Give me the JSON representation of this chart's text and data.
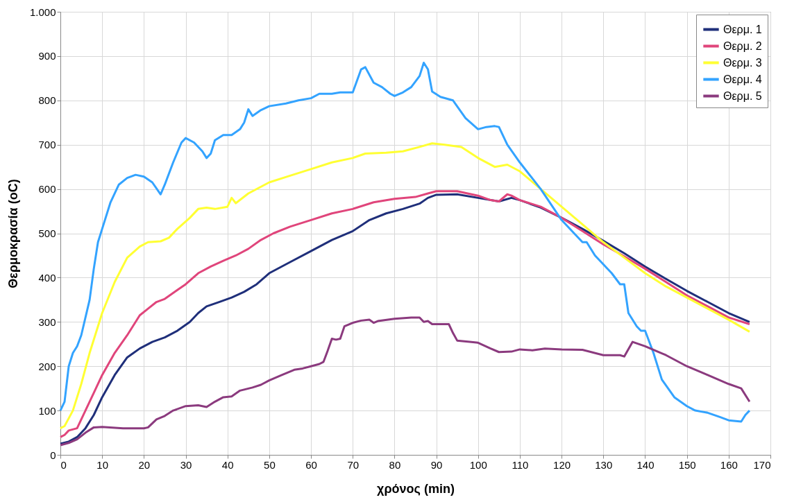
{
  "chart_data": {
    "type": "line",
    "xlabel": "χρόνος (min)",
    "ylabel": "Θερμοκρασία (oC)",
    "xlim": [
      0,
      170
    ],
    "xticks": [
      0,
      10,
      20,
      30,
      40,
      50,
      60,
      70,
      80,
      90,
      100,
      110,
      120,
      130,
      140,
      150,
      160,
      170
    ],
    "ylim": [
      0,
      1000
    ],
    "yticks": [
      0,
      100,
      200,
      300,
      400,
      500,
      600,
      700,
      800,
      900,
      {
        "value": 1000,
        "label": "1.000"
      }
    ],
    "grid": true,
    "legend": "top right",
    "marker": "none",
    "line_style": "solid",
    "series": [
      {
        "name": "Θερμ. 1",
        "color": "#1f2f7a",
        "x": [
          0,
          2,
          4,
          6,
          8,
          10,
          13,
          16,
          19,
          22,
          25,
          28,
          31,
          33,
          35,
          38,
          41,
          44,
          47,
          50,
          55,
          60,
          65,
          70,
          74,
          78,
          82,
          86,
          88,
          90,
          95,
          100,
          105,
          108,
          110,
          115,
          120,
          125,
          130,
          135,
          140,
          145,
          150,
          155,
          160,
          165
        ],
        "values": [
          25,
          30,
          40,
          60,
          90,
          130,
          180,
          220,
          240,
          255,
          265,
          280,
          300,
          320,
          335,
          345,
          355,
          368,
          385,
          410,
          435,
          460,
          485,
          505,
          530,
          545,
          555,
          567,
          580,
          587,
          588,
          580,
          572,
          580,
          575,
          558,
          535,
          510,
          483,
          455,
          425,
          397,
          370,
          345,
          320,
          300
        ]
      },
      {
        "name": "Θερμ. 2",
        "color": "#e0457b",
        "x": [
          0,
          1,
          2,
          4,
          6,
          8,
          10,
          13,
          16,
          19,
          21,
          23,
          25,
          28,
          30,
          33,
          36,
          39,
          42,
          45,
          48,
          51,
          55,
          60,
          65,
          70,
          75,
          80,
          85,
          88,
          90,
          95,
          100,
          103,
          105,
          107,
          108,
          110,
          115,
          120,
          125,
          130,
          135,
          140,
          145,
          150,
          155,
          160,
          165
        ],
        "values": [
          40,
          45,
          55,
          60,
          100,
          140,
          180,
          230,
          270,
          315,
          330,
          345,
          352,
          372,
          385,
          410,
          425,
          438,
          450,
          465,
          485,
          500,
          515,
          530,
          545,
          555,
          570,
          578,
          582,
          590,
          595,
          595,
          585,
          575,
          572,
          588,
          585,
          575,
          560,
          535,
          505,
          475,
          448,
          420,
          390,
          360,
          335,
          310,
          295
        ]
      },
      {
        "name": "Θερμ. 3",
        "color": "#ffff33",
        "x": [
          0,
          1,
          3,
          5,
          7,
          10,
          13,
          16,
          19,
          21,
          24,
          26,
          28,
          31,
          33,
          35,
          37,
          40,
          41,
          42,
          45,
          50,
          55,
          60,
          65,
          70,
          73,
          78,
          82,
          86,
          89,
          92,
          96,
          100,
          104,
          107,
          110,
          115,
          120,
          125,
          130,
          135,
          140,
          145,
          150,
          155,
          160,
          165
        ],
        "values": [
          60,
          65,
          100,
          160,
          230,
          320,
          390,
          445,
          470,
          480,
          482,
          490,
          510,
          535,
          555,
          558,
          555,
          560,
          580,
          568,
          590,
          615,
          630,
          645,
          660,
          670,
          680,
          682,
          685,
          695,
          703,
          700,
          695,
          670,
          650,
          655,
          640,
          600,
          560,
          520,
          480,
          445,
          410,
          380,
          355,
          330,
          305,
          278
        ]
      },
      {
        "name": "Θερμ. 4",
        "color": "#33a3ff",
        "x": [
          0,
          1,
          2,
          3,
          4,
          5,
          7,
          8,
          9,
          10,
          12,
          14,
          16,
          18,
          20,
          22,
          24,
          25,
          27,
          29,
          30,
          32,
          34,
          35,
          36,
          37,
          39,
          41,
          43,
          44,
          45,
          46,
          48,
          50,
          54,
          57,
          60,
          62,
          65,
          67,
          70,
          72,
          73,
          75,
          77,
          79,
          80,
          82,
          84,
          86,
          87,
          88,
          89,
          91,
          94,
          97,
          100,
          102,
          104,
          105,
          107,
          110,
          115,
          120,
          123,
          125,
          126,
          128,
          132,
          134,
          135,
          136,
          138,
          139,
          140,
          142,
          144,
          147,
          150,
          152,
          155,
          158,
          160,
          163,
          164,
          165
        ],
        "values": [
          100,
          120,
          200,
          230,
          245,
          270,
          350,
          420,
          480,
          510,
          570,
          610,
          625,
          632,
          628,
          615,
          588,
          610,
          660,
          705,
          715,
          705,
          685,
          670,
          680,
          710,
          722,
          722,
          735,
          750,
          780,
          765,
          778,
          787,
          793,
          800,
          805,
          815,
          815,
          818,
          818,
          870,
          875,
          840,
          830,
          815,
          810,
          818,
          830,
          855,
          885,
          870,
          820,
          808,
          800,
          760,
          735,
          740,
          742,
          740,
          700,
          660,
          600,
          530,
          500,
          480,
          480,
          450,
          410,
          385,
          385,
          320,
          290,
          280,
          280,
          230,
          170,
          130,
          110,
          100,
          95,
          85,
          78,
          75,
          90,
          100
        ]
      },
      {
        "name": "Θερμ. 5",
        "color": "#8b3a7e",
        "x": [
          0,
          2,
          4,
          6,
          8,
          10,
          15,
          20,
          21,
          23,
          25,
          27,
          30,
          33,
          35,
          37,
          39,
          41,
          43,
          46,
          48,
          50,
          53,
          56,
          58,
          60,
          62,
          63,
          64,
          65,
          66,
          67,
          68,
          70,
          72,
          74,
          75,
          76,
          80,
          84,
          86,
          87,
          88,
          89,
          91,
          93,
          94,
          95,
          98,
          100,
          103,
          105,
          108,
          110,
          113,
          116,
          120,
          125,
          130,
          134,
          135,
          137,
          140,
          145,
          150,
          155,
          160,
          163,
          165
        ],
        "values": [
          22,
          27,
          35,
          50,
          62,
          63,
          60,
          60,
          62,
          80,
          88,
          100,
          110,
          112,
          108,
          120,
          130,
          132,
          145,
          152,
          158,
          168,
          180,
          192,
          195,
          200,
          205,
          210,
          235,
          262,
          260,
          262,
          290,
          298,
          303,
          305,
          298,
          302,
          307,
          310,
          310,
          300,
          302,
          295,
          295,
          295,
          275,
          258,
          255,
          253,
          240,
          232,
          233,
          238,
          236,
          240,
          238,
          237,
          225,
          225,
          222,
          255,
          245,
          225,
          200,
          180,
          160,
          150,
          120
        ]
      }
    ]
  }
}
